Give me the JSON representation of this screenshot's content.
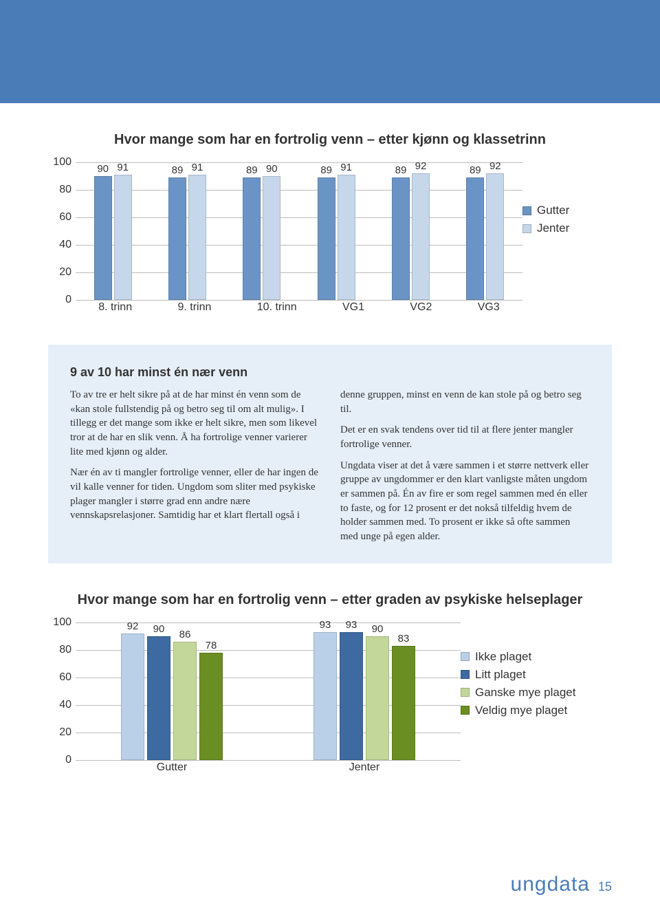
{
  "header_bg": "#4a7db8",
  "chart1": {
    "type": "bar",
    "title": "Hvor mange som har en fortrolig venn –\netter kjønn og klassetrinn",
    "categories": [
      "8. trinn",
      "9. trinn",
      "10. trinn",
      "VG1",
      "VG2",
      "VG3"
    ],
    "series": [
      {
        "name": "Gutter",
        "color": "#6b94c6",
        "values": [
          90,
          89,
          89,
          89,
          89,
          89
        ]
      },
      {
        "name": "Jenter",
        "color": "#c6d7eb",
        "values": [
          91,
          91,
          90,
          91,
          92,
          92
        ]
      }
    ],
    "ylim": [
      0,
      100
    ],
    "ytick_step": 20,
    "grid_color": "#bdbdbd"
  },
  "textblock": {
    "bg": "#e6eff8",
    "heading": "9 av 10 har minst én nær venn",
    "p1": "To av tre er helt sikre på at de har minst én venn som de «kan stole fullstendig på og betro seg til om alt mulig». I tillegg er det mange som ikke er helt sikre, men som likevel tror at de har en slik venn. Å ha fortrolige venner varierer lite med kjønn og alder.",
    "p2": "Nær én av ti mangler fortrolige venner, eller de har ingen de vil kalle venner for tiden. Ungdom som sliter med psykiske plager mangler i større grad enn andre nære vennskapsrelasjoner. Samtidig har et klart flertall også i denne gruppen, minst en venn de kan stole på og betro seg til.",
    "p3": "Det er en svak tendens over tid til at flere jenter mangler fortrolige venner.",
    "p4": "Ungdata viser at det å være sammen i et større nettverk eller gruppe av ungdommer er den klart vanligste måten ungdom er sammen på. Én av fire er som regel sammen med én eller to faste, og for 12 prosent er det nokså tilfeldig hvem de holder sammen med. To prosent er ikke så ofte sammen med unge på egen alder."
  },
  "chart2": {
    "type": "bar",
    "title": "Hvor mange som har en fortrolig venn –\netter graden av psykiske helseplager",
    "categories": [
      "Gutter",
      "Jenter"
    ],
    "series": [
      {
        "name": "Ikke plaget",
        "color": "#b9d0e8",
        "values": [
          92,
          93
        ]
      },
      {
        "name": "Litt plaget",
        "color": "#3d6aa0",
        "values": [
          90,
          93
        ]
      },
      {
        "name": "Ganske mye plaget",
        "color": "#c4d79b",
        "values": [
          86,
          90
        ]
      },
      {
        "name": "Veldig mye plaget",
        "color": "#6b8e23",
        "values": [
          78,
          83
        ]
      }
    ],
    "ylim": [
      0,
      100
    ],
    "ytick_step": 20,
    "grid_color": "#bdbdbd"
  },
  "footer": {
    "logo": "ungdata",
    "page": "15"
  }
}
